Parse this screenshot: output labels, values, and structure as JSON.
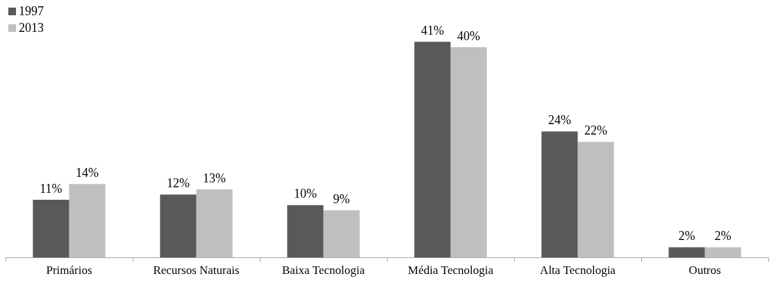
{
  "chart_data": {
    "type": "bar",
    "categories": [
      "Primários",
      "Recursos Naturais",
      "Baixa Tecnologia",
      "Média Tecnologia",
      "Alta Tecnologia",
      "Outros"
    ],
    "series": [
      {
        "name": "1997",
        "color": "#595959",
        "values": [
          11,
          12,
          10,
          41,
          24,
          2
        ],
        "value_labels": [
          "11%",
          "12%",
          "10%",
          "41%",
          "24%",
          "2%"
        ]
      },
      {
        "name": "2013",
        "color": "#bfbfbf",
        "values": [
          14,
          13,
          9,
          40,
          22,
          2
        ],
        "value_labels": [
          "14%",
          "13%",
          "9%",
          "40%",
          "22%",
          "2%"
        ]
      }
    ],
    "legend": "top-left",
    "data_labels": true,
    "tick_labels": "x",
    "grid": false
  }
}
